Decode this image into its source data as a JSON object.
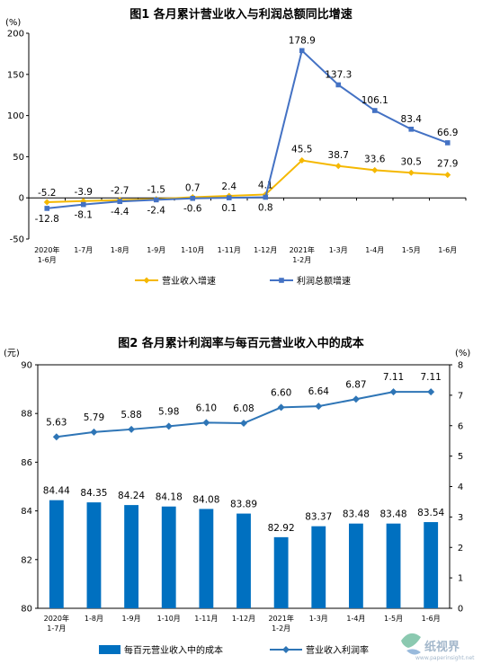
{
  "chart_data": [
    {
      "type": "line",
      "title": "图1  各月累计营业收入与利润总额同比增速",
      "unit_label": "(%)",
      "categories": [
        [
          "2020年",
          "1-6月"
        ],
        [
          "1-7月"
        ],
        [
          "1-8月"
        ],
        [
          "1-9月"
        ],
        [
          "1-10月"
        ],
        [
          "1-11月"
        ],
        [
          "1-12月"
        ],
        [
          "2021年",
          "1-2月"
        ],
        [
          "1-3月"
        ],
        [
          "1-4月"
        ],
        [
          "1-5月"
        ],
        [
          "1-6月"
        ]
      ],
      "ylim": [
        -50,
        200
      ],
      "yticks": [
        "-50",
        "0",
        "50",
        "100",
        "150",
        "200"
      ],
      "grid": false,
      "legend_position": "bottom",
      "series": [
        {
          "name": "营业收入增速",
          "color": "#f5b800",
          "values": [
            -5.2,
            -3.9,
            -2.7,
            -1.5,
            0.7,
            2.4,
            4.1,
            45.5,
            38.7,
            33.6,
            30.5,
            27.9
          ],
          "labels": [
            "-5.2",
            "-3.9",
            "-2.7",
            "-1.5",
            "0.7",
            "2.4",
            "4.1",
            "45.5",
            "38.7",
            "33.6",
            "30.5",
            "27.9"
          ]
        },
        {
          "name": "利润总额增速",
          "color": "#4472c4",
          "values": [
            -12.8,
            -8.1,
            -4.4,
            -2.4,
            -0.6,
            0.1,
            0.8,
            178.9,
            137.3,
            106.1,
            83.4,
            66.9
          ],
          "labels": [
            "-12.8",
            "-8.1",
            "-4.4",
            "-2.4",
            "-0.6",
            "0.1",
            "0.8",
            "178.9",
            "137.3",
            "106.1",
            "83.4",
            "66.9"
          ]
        }
      ]
    },
    {
      "type": "bar",
      "title": "图2  各月累计利润率与每百元营业收入中的成本",
      "left_unit": "(元)",
      "right_unit": "(%)",
      "categories": [
        [
          "2020年",
          "1-7月"
        ],
        [
          "1-8月"
        ],
        [
          "1-9月"
        ],
        [
          "1-10月"
        ],
        [
          "1-11月"
        ],
        [
          "1-12月"
        ],
        [
          "2021年",
          "1-2月"
        ],
        [
          "1-3月"
        ],
        [
          "1-4月"
        ],
        [
          "1-5月"
        ],
        [
          "1-6月"
        ]
      ],
      "ylim_left": [
        80,
        90
      ],
      "yticks_left": [
        "80",
        "82",
        "84",
        "86",
        "88",
        "90"
      ],
      "ylim_right": [
        0,
        8
      ],
      "yticks_right": [
        "0",
        "1",
        "2",
        "3",
        "4",
        "5",
        "6",
        "7",
        "8"
      ],
      "grid": false,
      "legend_position": "bottom",
      "series": [
        {
          "name": "每百元营业收入中的成本",
          "type": "bar",
          "axis": "left",
          "color": "#0070c0",
          "values": [
            84.44,
            84.35,
            84.24,
            84.18,
            84.08,
            83.89,
            82.92,
            83.37,
            83.48,
            83.48,
            83.54
          ],
          "labels": [
            "84.44",
            "84.35",
            "84.24",
            "84.18",
            "84.08",
            "83.89",
            "82.92",
            "83.37",
            "83.48",
            "83.48",
            "83.54"
          ]
        },
        {
          "name": "营业收入利润率",
          "type": "line",
          "axis": "right",
          "color": "#2e75b6",
          "values": [
            5.63,
            5.79,
            5.88,
            5.98,
            6.1,
            6.08,
            6.6,
            6.64,
            6.87,
            7.11,
            7.11
          ],
          "labels": [
            "5.63",
            "5.79",
            "5.88",
            "5.98",
            "6.10",
            "6.08",
            "6.60",
            "6.64",
            "6.87",
            "7.11",
            "7.11"
          ]
        }
      ]
    }
  ],
  "watermark": {
    "text": "纸视界",
    "subtext": "www.paperinsight.net"
  }
}
